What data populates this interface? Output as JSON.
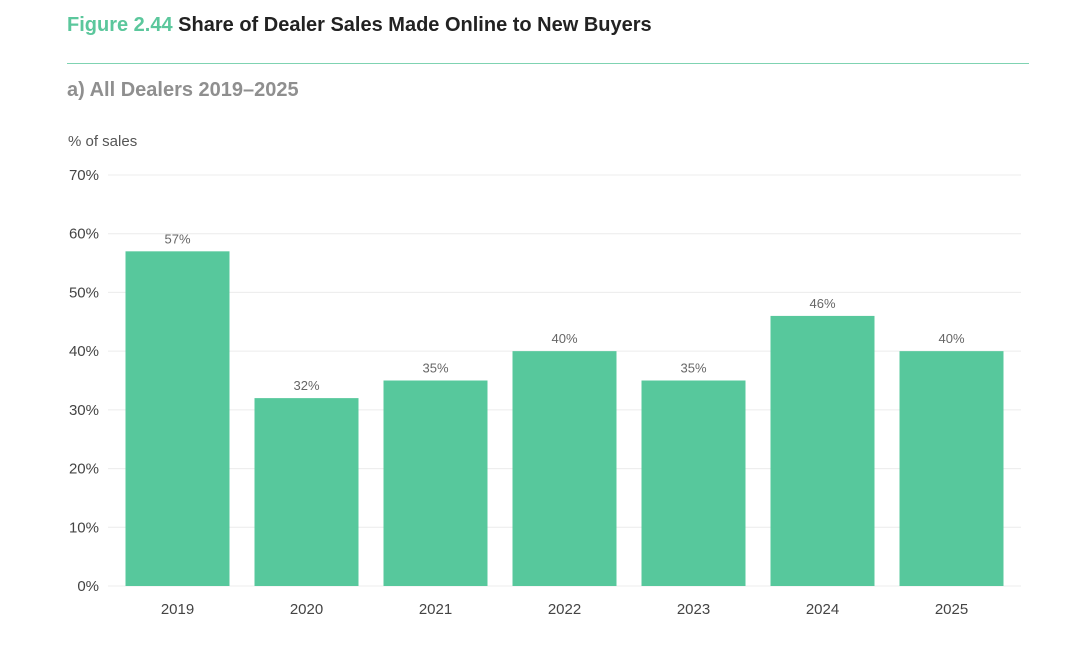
{
  "figure": {
    "number": "Figure 2.44",
    "title": "Share of Dealer Sales Made Online to New Buyers",
    "subtitle": "a) All Dealers 2019–2025"
  },
  "colors": {
    "accent": "#5bc79c",
    "bar": "#57c89c",
    "rule": "#7fd3b2",
    "grid": "#ececec"
  },
  "chart_data": {
    "type": "bar",
    "title": "Share of Dealer Sales Made Online to New Buyers",
    "subtitle": "a) All Dealers 2019–2025",
    "xlabel": "",
    "ylabel": "% of sales",
    "ylim": [
      0,
      70
    ],
    "yticks": [
      0,
      10,
      20,
      30,
      40,
      50,
      60,
      70
    ],
    "ytick_labels": [
      "0%",
      "10%",
      "20%",
      "30%",
      "40%",
      "50%",
      "60%",
      "70%"
    ],
    "grid": true,
    "categories": [
      "2019",
      "2020",
      "2021",
      "2022",
      "2023",
      "2024",
      "2025"
    ],
    "values": [
      57,
      32,
      35,
      40,
      35,
      46,
      40
    ],
    "data_labels": [
      "57%",
      "32%",
      "35%",
      "40%",
      "35%",
      "46%",
      "40%"
    ]
  }
}
